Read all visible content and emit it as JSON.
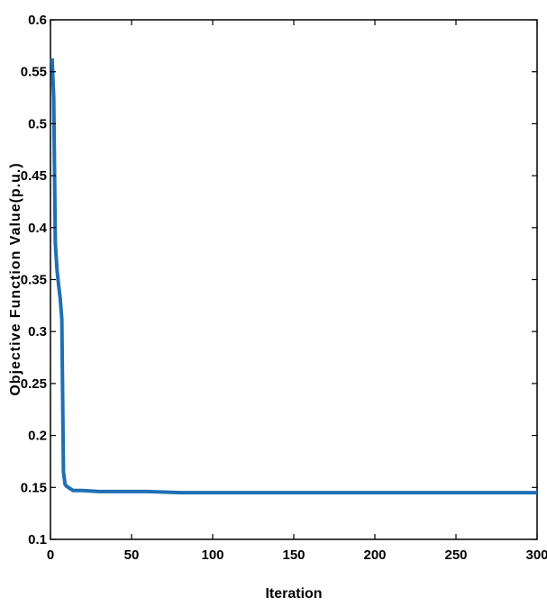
{
  "chart_data": {
    "type": "line",
    "title": "",
    "xlabel": "Iteration",
    "ylabel": "Objective Function Value(p.u.)",
    "xlim": [
      0,
      300
    ],
    "ylim": [
      0.1,
      0.6
    ],
    "xticks": [
      0,
      50,
      100,
      150,
      200,
      250,
      300
    ],
    "yticks": [
      0.1,
      0.15,
      0.2,
      0.25,
      0.3,
      0.35,
      0.4,
      0.45,
      0.5,
      0.55,
      0.6
    ],
    "xtick_labels": [
      "0",
      "50",
      "100",
      "150",
      "200",
      "250",
      "300"
    ],
    "ytick_labels": [
      "0.1",
      "0.15",
      "0.2",
      "0.25",
      "0.3",
      "0.35",
      "0.4",
      "0.45",
      "0.5",
      "0.55",
      "0.6"
    ],
    "grid": false,
    "legend": "none",
    "series": [
      {
        "color": "#1f6fb5",
        "x": [
          1,
          2,
          3,
          4,
          5,
          6,
          7,
          8,
          9,
          10,
          11,
          12,
          13,
          14,
          15,
          20,
          30,
          40,
          60,
          80,
          100,
          150,
          200,
          250,
          300
        ],
        "y": [
          0.563,
          0.525,
          0.385,
          0.36,
          0.345,
          0.332,
          0.312,
          0.165,
          0.153,
          0.151,
          0.15,
          0.149,
          0.148,
          0.147,
          0.147,
          0.147,
          0.146,
          0.146,
          0.146,
          0.145,
          0.145,
          0.145,
          0.145,
          0.145,
          0.145
        ]
      }
    ]
  }
}
